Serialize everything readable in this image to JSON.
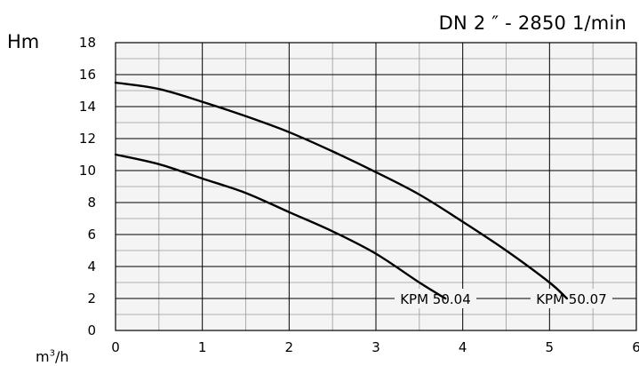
{
  "chart_data": {
    "type": "line",
    "title": "DN 2 ″ - 2850 1/min",
    "ylabel": "Hm",
    "xlabel_base": "m",
    "xlabel_sup": "3",
    "xlabel_tail": "/h",
    "xlim": [
      0,
      6
    ],
    "ylim": [
      0,
      18
    ],
    "xticks": [
      "0",
      "1",
      "2",
      "3",
      "4",
      "5",
      "6"
    ],
    "yticks": [
      "0",
      "2",
      "4",
      "6",
      "8",
      "10",
      "12",
      "14",
      "16",
      "18"
    ],
    "grid": true,
    "series": [
      {
        "name": "KPM 50.04",
        "x": [
          0,
          0.5,
          1,
          1.5,
          2,
          2.5,
          3,
          3.5,
          3.8
        ],
        "y": [
          11.0,
          10.4,
          9.5,
          8.6,
          7.4,
          6.2,
          4.8,
          3.0,
          2.0
        ]
      },
      {
        "name": "KPM 50.07",
        "x": [
          0,
          0.5,
          1,
          1.5,
          2,
          2.5,
          3,
          3.5,
          4,
          4.5,
          5,
          5.2
        ],
        "y": [
          15.5,
          15.1,
          14.3,
          13.4,
          12.4,
          11.2,
          9.9,
          8.5,
          6.8,
          5.0,
          3.0,
          2.0
        ]
      }
    ],
    "annotations": [
      "KPM 50.04",
      "KPM 50.07"
    ],
    "colors": {
      "line": "#000000",
      "grid_major": "#000000",
      "grid_minor": "#9a9a9a",
      "plot_bg": "#f4f4f4"
    }
  }
}
